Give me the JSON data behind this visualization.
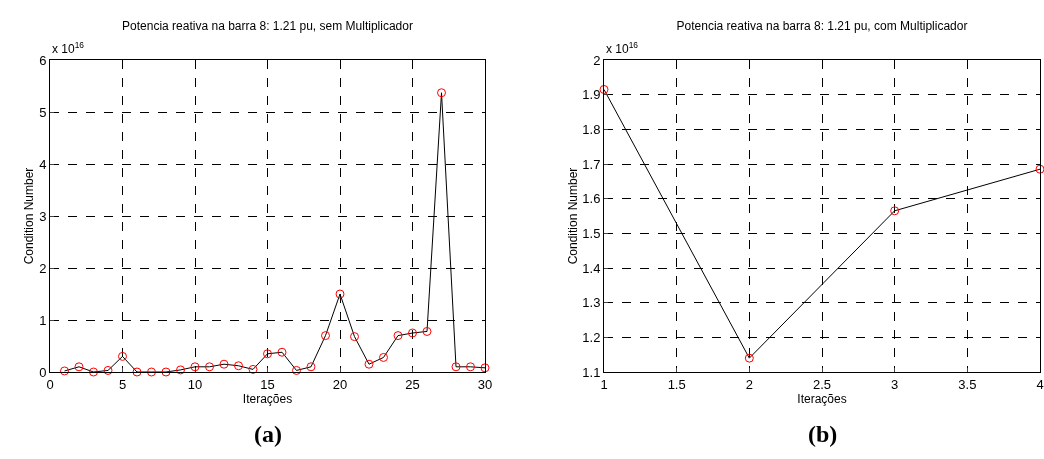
{
  "chart_data": [
    {
      "type": "line",
      "title": "Potencia reativa na barra 8: 1.21 pu, sem Multiplicador",
      "xlabel": "Iterações",
      "ylabel": "Condition Number",
      "annotations": [
        "x 10$^{16}$",
        "(a)"
      ],
      "x": [
        1,
        2,
        3,
        4,
        5,
        6,
        7,
        8,
        9,
        10,
        11,
        12,
        13,
        14,
        15,
        16,
        17,
        18,
        19,
        20,
        21,
        22,
        23,
        24,
        25,
        26,
        27,
        28,
        29,
        30
      ],
      "series": [
        {
          "color": "#000000",
          "marker": "none",
          "values": [
            0.02,
            0.1,
            0.0,
            0.03,
            0.3,
            0.0,
            0.0,
            0.0,
            0.04,
            0.1,
            0.1,
            0.15,
            0.12,
            0.05,
            0.35,
            0.38,
            0.03,
            0.1,
            0.7,
            1.5,
            0.68,
            0.15,
            0.28,
            0.7,
            0.75,
            0.78,
            5.37,
            0.1,
            0.1,
            0.08
          ]
        },
        {
          "type": "scatter",
          "color": "#ff0000",
          "marker": "circle",
          "values": [
            0.02,
            0.1,
            0.0,
            0.03,
            0.3,
            0.0,
            0.0,
            0.0,
            0.04,
            0.1,
            0.1,
            0.15,
            0.12,
            0.05,
            0.35,
            0.38,
            0.03,
            0.1,
            0.7,
            1.5,
            0.68,
            0.15,
            0.28,
            0.7,
            0.75,
            0.78,
            5.37,
            0.1,
            0.1,
            0.08
          ]
        }
      ],
      "xlim": [
        0,
        30
      ],
      "xticks": [
        0,
        5,
        10,
        15,
        20,
        25,
        30
      ],
      "ylim": [
        0,
        6
      ],
      "yticks": [
        0,
        1,
        2,
        3,
        4,
        5,
        6
      ],
      "grid": true
    },
    {
      "type": "line",
      "title": "Potencia reativa na barra 8: 1.21 pu, com Multiplicador",
      "xlabel": "Iterações",
      "ylabel": "Condition Number",
      "annotations": [
        "x 10$^{16}$",
        "(b)"
      ],
      "x": [
        1,
        2,
        3,
        4
      ],
      "series": [
        {
          "color": "#000000",
          "marker": "none",
          "values": [
            1.915,
            1.14,
            1.565,
            1.685
          ]
        },
        {
          "type": "scatter",
          "color": "#ff0000",
          "marker": "circle",
          "values": [
            1.915,
            1.14,
            1.565,
            1.685
          ]
        }
      ],
      "xlim": [
        1,
        4
      ],
      "xticks": [
        1,
        1.5,
        2,
        2.5,
        3,
        3.5,
        4
      ],
      "ylim": [
        1.1,
        2
      ],
      "yticks": [
        1.1,
        1.2,
        1.3,
        1.4,
        1.5,
        1.6,
        1.7,
        1.8,
        1.9,
        2
      ],
      "grid": true
    }
  ]
}
